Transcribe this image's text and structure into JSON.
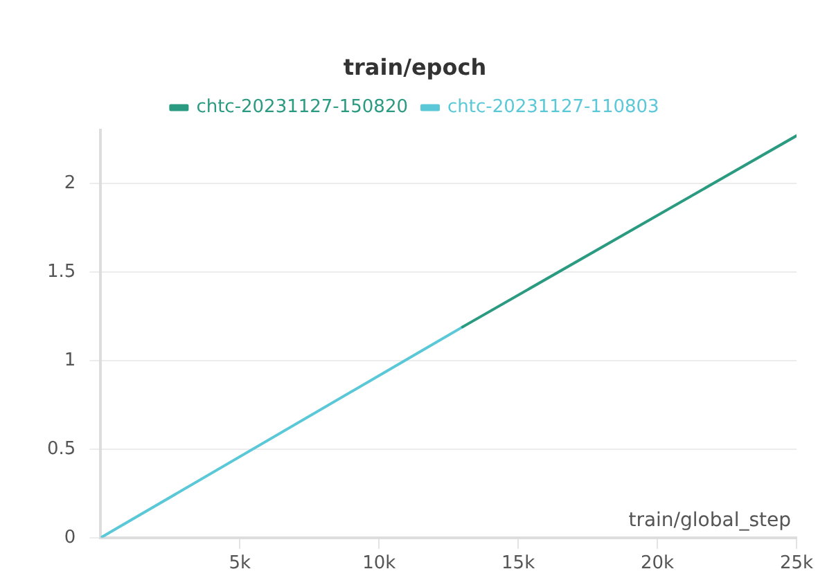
{
  "chart_data": {
    "type": "line",
    "title": "train/epoch",
    "xlabel": "train/global_step",
    "series": [
      {
        "name": "chtc-20231127-150820",
        "color": "#2a9a80",
        "x": [
          13000,
          25000
        ],
        "values": [
          1.19,
          2.27
        ]
      },
      {
        "name": "chtc-20231127-110803",
        "color": "#5bc8d8",
        "x": [
          0,
          13000
        ],
        "values": [
          0,
          1.19
        ]
      }
    ],
    "xlim": [
      0,
      25000
    ],
    "xticks": [
      {
        "value": 5000,
        "label": "5k"
      },
      {
        "value": 10000,
        "label": "10k"
      },
      {
        "value": 15000,
        "label": "15k"
      },
      {
        "value": 20000,
        "label": "20k"
      },
      {
        "value": 25000,
        "label": "25k"
      }
    ],
    "ylim": [
      0,
      2.3
    ],
    "yticks": [
      0,
      0.5,
      1,
      1.5,
      2
    ],
    "grid": "y",
    "legend": "top",
    "marker": "none",
    "line_style": "solid"
  }
}
